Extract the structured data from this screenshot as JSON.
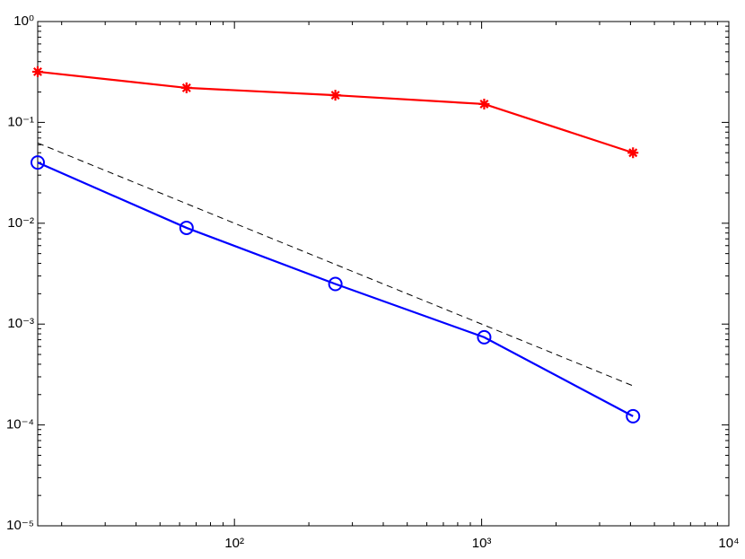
{
  "chart_data": {
    "type": "line",
    "x": [
      16,
      64,
      256,
      1024,
      4096
    ],
    "series": [
      {
        "color": "#ff0000",
        "marker": "asterisk",
        "style": "solid",
        "values": [
          0.318,
          0.22,
          0.186,
          0.152,
          0.05
        ]
      },
      {
        "color": "#0000ff",
        "marker": "circle",
        "style": "solid",
        "values": [
          0.04,
          0.009,
          0.0025,
          0.00074,
          0.000122
        ]
      },
      {
        "color": "#000000",
        "marker": "none",
        "style": "dashed",
        "values": [
          0.0625,
          0.015625,
          0.00390625,
          0.0009765625,
          0.000244140625
        ]
      }
    ],
    "xlog": true,
    "ylog": true,
    "xlim": [
      16,
      10000
    ],
    "ylim": [
      1e-05,
      1
    ],
    "xticks": [
      {
        "value": 100,
        "label": "10²"
      },
      {
        "value": 1000,
        "label": "10³"
      },
      {
        "value": 10000,
        "label": "10⁴"
      }
    ],
    "yticks": [
      {
        "value": 1e-05,
        "label": "10⁻⁵"
      },
      {
        "value": 0.0001,
        "label": "10⁻⁴"
      },
      {
        "value": 0.001,
        "label": "10⁻³"
      },
      {
        "value": 0.01,
        "label": "10⁻²"
      },
      {
        "value": 0.1,
        "label": "10⁻¹"
      },
      {
        "value": 1,
        "label": "10⁰"
      }
    ],
    "xminorticks": [
      20,
      30,
      40,
      50,
      60,
      70,
      80,
      90,
      200,
      300,
      400,
      500,
      600,
      700,
      800,
      900,
      2000,
      3000,
      4000,
      5000,
      6000,
      7000,
      8000,
      9000
    ],
    "yminorticks": [
      2e-05,
      3e-05,
      4e-05,
      5e-05,
      6e-05,
      7e-05,
      8e-05,
      9e-05,
      0.0002,
      0.0003,
      0.0004,
      0.0005,
      0.0006,
      0.0007,
      0.0008,
      0.0009,
      0.002,
      0.003,
      0.004,
      0.005,
      0.006,
      0.007,
      0.008,
      0.009,
      0.02,
      0.03,
      0.04,
      0.05,
      0.06,
      0.07,
      0.08,
      0.09,
      0.2,
      0.3,
      0.4,
      0.5,
      0.6,
      0.7,
      0.8,
      0.9
    ],
    "grid": false
  }
}
